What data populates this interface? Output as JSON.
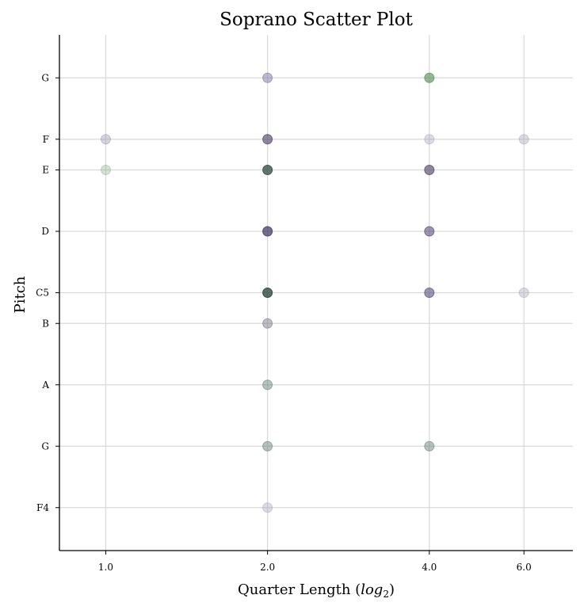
{
  "chart_data": {
    "type": "scatter",
    "title": "Soprano Scatter Plot",
    "xlabel": "Quarter Length (",
    "xlabel_math": "log",
    "xlabel_sub": "2",
    "xlabel_close": ")",
    "ylabel": "Pitch",
    "x_scale": "log2",
    "x_ticks": [
      {
        "value": 1,
        "label": "1.0"
      },
      {
        "value": 2,
        "label": "2.0"
      },
      {
        "value": 4,
        "label": "4.0"
      },
      {
        "value": 6,
        "label": "6.0"
      }
    ],
    "y_ticks": [
      {
        "value": 65,
        "label": "F4"
      },
      {
        "value": 67,
        "label": "G"
      },
      {
        "value": 69,
        "label": "A"
      },
      {
        "value": 71,
        "label": "B"
      },
      {
        "value": 72,
        "label": "C5"
      },
      {
        "value": 74,
        "label": "D"
      },
      {
        "value": 76,
        "label": "E"
      },
      {
        "value": 77,
        "label": "F"
      },
      {
        "value": 79,
        "label": "G"
      }
    ],
    "xlim": [
      0.82,
      7.4
    ],
    "ylim": [
      63.6,
      80.4
    ],
    "grid": true,
    "points": [
      {
        "x": 2,
        "y": 79,
        "color": "#6a6a9a",
        "alpha": 0.45
      },
      {
        "x": 4,
        "y": 79,
        "color": "#4e8a4e",
        "alpha": 0.6
      },
      {
        "x": 1,
        "y": 77,
        "color": "#8a8aaa",
        "alpha": 0.35
      },
      {
        "x": 2,
        "y": 77,
        "color": "#4a3a5e",
        "alpha": 0.6
      },
      {
        "x": 4,
        "y": 77,
        "color": "#9a9ab5",
        "alpha": 0.35
      },
      {
        "x": 6,
        "y": 77,
        "color": "#9a9ab5",
        "alpha": 0.35
      },
      {
        "x": 1,
        "y": 76,
        "color": "#8aaa8a",
        "alpha": 0.35
      },
      {
        "x": 2,
        "y": 76,
        "color": "#2e4a3e",
        "alpha": 0.75
      },
      {
        "x": 4,
        "y": 76,
        "color": "#4a3a5e",
        "alpha": 0.6
      },
      {
        "x": 2,
        "y": 74,
        "color": "#3a3060",
        "alpha": 0.7
      },
      {
        "x": 4,
        "y": 74,
        "color": "#4e3e72",
        "alpha": 0.55
      },
      {
        "x": 2,
        "y": 72,
        "color": "#243e36",
        "alpha": 0.75
      },
      {
        "x": 4,
        "y": 72,
        "color": "#4e3e72",
        "alpha": 0.55
      },
      {
        "x": 6,
        "y": 72,
        "color": "#9a9ab5",
        "alpha": 0.35
      },
      {
        "x": 2,
        "y": 71,
        "color": "#6e6e80",
        "alpha": 0.45
      },
      {
        "x": 2,
        "y": 69,
        "color": "#5e7a6a",
        "alpha": 0.45
      },
      {
        "x": 2,
        "y": 67,
        "color": "#5e7a6a",
        "alpha": 0.45
      },
      {
        "x": 4,
        "y": 67,
        "color": "#5e7a6a",
        "alpha": 0.45
      },
      {
        "x": 2,
        "y": 65,
        "color": "#9a9ab5",
        "alpha": 0.35
      }
    ]
  }
}
